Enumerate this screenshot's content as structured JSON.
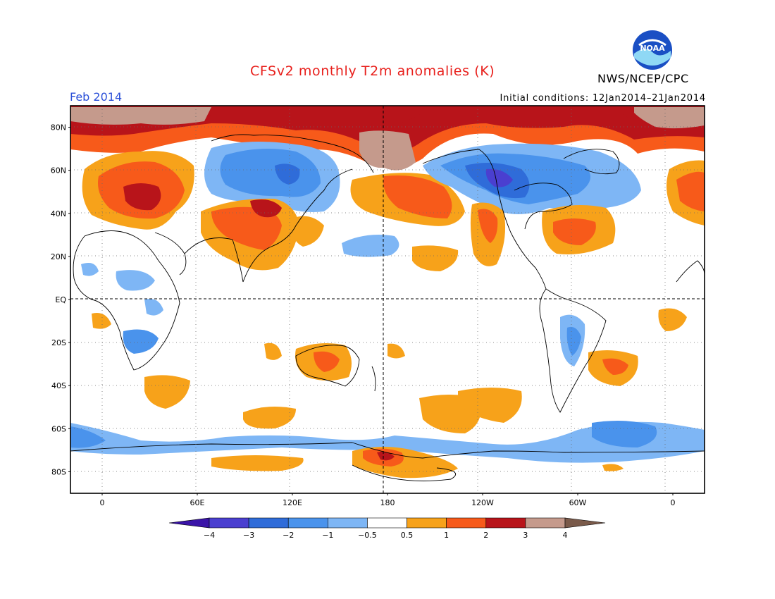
{
  "title": "CFSv2 monthly T2m anomalies (K)",
  "month": "Feb 2014",
  "initial_conditions": "Initial conditions: 12Jan2014–21Jan2014",
  "agency": "NWS/NCEP/CPC",
  "logo": {
    "text": "NOAA",
    "icon": "noaa-logo-icon"
  },
  "map": {
    "lat_labels": [
      {
        "lat": 80,
        "label": "80N"
      },
      {
        "lat": 60,
        "label": "60N"
      },
      {
        "lat": 40,
        "label": "40N"
      },
      {
        "lat": 20,
        "label": "20N"
      },
      {
        "lat": 0,
        "label": "EQ"
      },
      {
        "lat": -20,
        "label": "20S"
      },
      {
        "lat": -40,
        "label": "40S"
      },
      {
        "lat": -60,
        "label": "60S"
      },
      {
        "lat": -80,
        "label": "80S"
      }
    ],
    "lon_labels": [
      {
        "lon": 0,
        "label": "0"
      },
      {
        "lon": 60,
        "label": "60E"
      },
      {
        "lon": 120,
        "label": "120E"
      },
      {
        "lon": 180,
        "label": "180"
      },
      {
        "lon": 240,
        "label": "120W"
      },
      {
        "lon": 300,
        "label": "60W"
      },
      {
        "lon": 360,
        "label": "0"
      }
    ],
    "lon_range": [
      -20,
      380
    ],
    "lat_range": [
      -90,
      90
    ]
  },
  "colorbar": {
    "colors": [
      "#3a14a8",
      "#4a3fd0",
      "#2f6cd9",
      "#4a93ec",
      "#7eb6f5",
      "#ffffff",
      "#f7a21a",
      "#f75a1a",
      "#b8141a",
      "#c59a8c",
      "#7a5a4a"
    ],
    "labels": [
      "−4",
      "−3",
      "−2",
      "−1",
      "−0.5",
      "0.5",
      "1",
      "2",
      "3",
      "4"
    ]
  }
}
